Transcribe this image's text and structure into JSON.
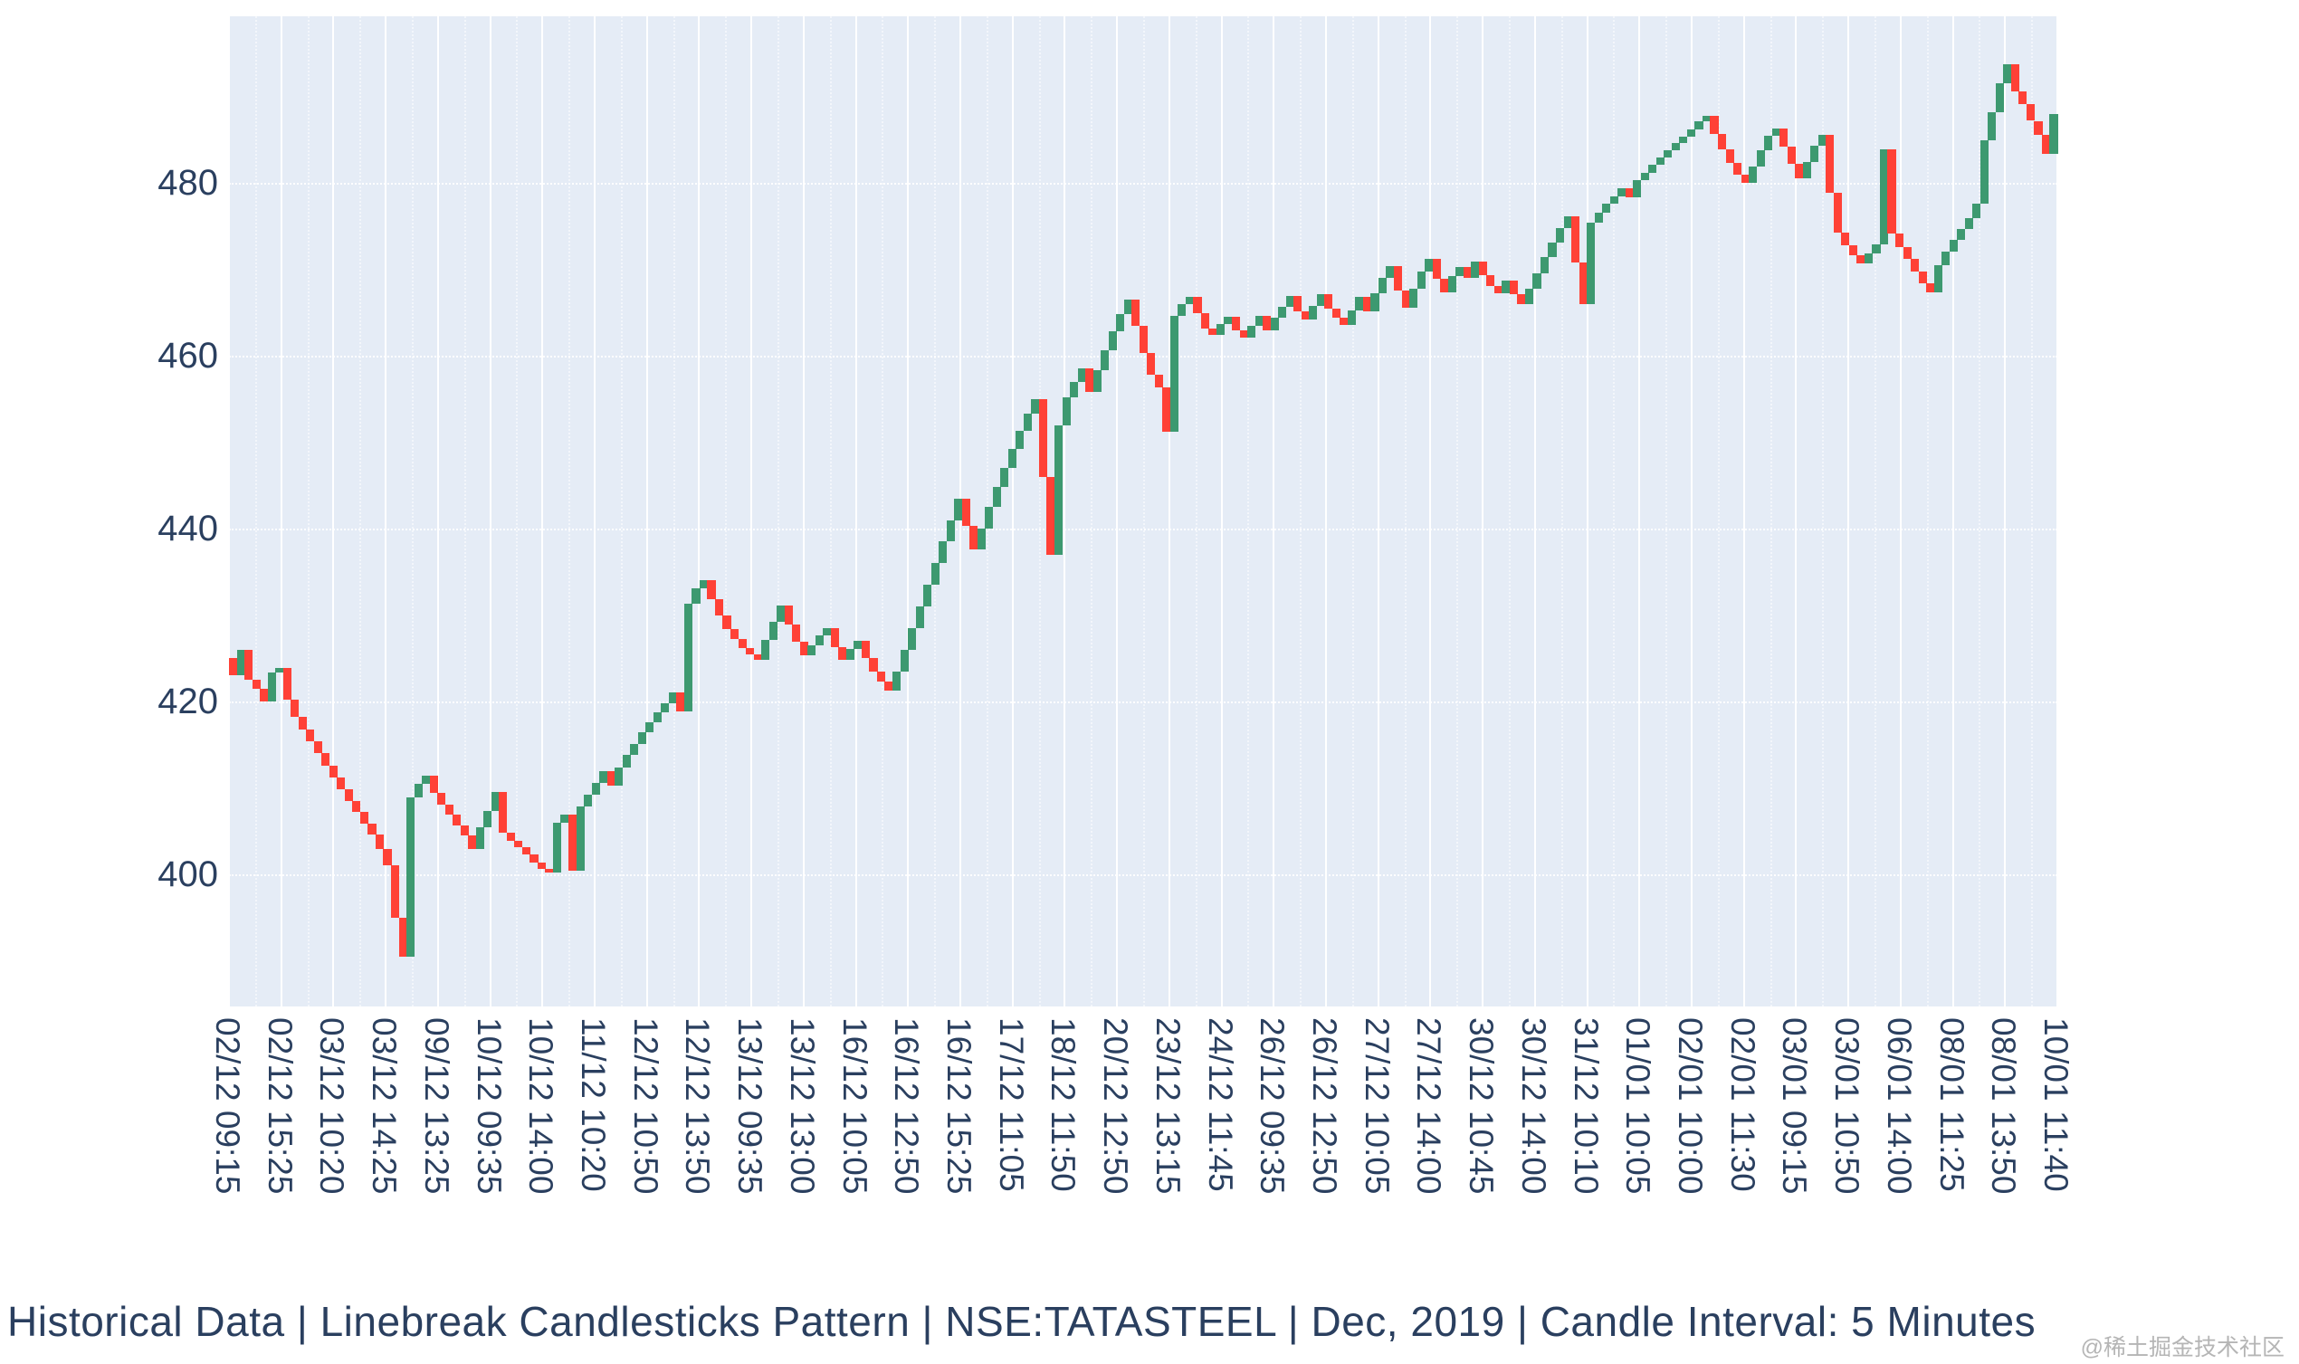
{
  "title": "Historical Data | Linebreak Candlesticks Pattern | NSE:TATASTEEL | Dec, 2019 | Candle Interval: 5 Minutes",
  "watermark": "@稀土掘金技术社区",
  "chart_data": {
    "type": "candlestick",
    "subtype": "linebreak",
    "symbol": "NSE:TATASTEEL",
    "period": "Dec, 2019",
    "candle_interval": "5 Minutes",
    "legend_position": "none",
    "grid": "on",
    "y_ticks": [
      400,
      420,
      440,
      460,
      480
    ],
    "y_range": [
      384.7,
      499.3
    ],
    "x_tick_labels": [
      "02/12 09:15",
      "02/12 15:25",
      "03/12 10:20",
      "03/12 14:25",
      "09/12 13:25",
      "10/12 09:35",
      "10/12 14:00",
      "11/12 10:20",
      "12/12 10:50",
      "12/12 13:50",
      "13/12 09:35",
      "13/12 13:00",
      "16/12 10:05",
      "16/12 12:50",
      "16/12 15:25",
      "17/12 11:05",
      "18/12 11:50",
      "20/12 12:50",
      "23/12 13:15",
      "24/12 11:45",
      "26/12 09:35",
      "26/12 12:50",
      "27/12 10:05",
      "27/12 14:00",
      "30/12 10:45",
      "30/12 14:00",
      "31/12 10:10",
      "01/01 10:05",
      "02/01 10:00",
      "02/01 11:30",
      "03/01 09:15",
      "03/01 10:50",
      "06/01 14:00",
      "08/01 11:25",
      "08/01 13:50",
      "10/01 11:40"
    ],
    "first_open": 425.0,
    "closes": [
      423.0,
      426.0,
      422.5,
      421.5,
      420.0,
      423.4,
      423.9,
      420.2,
      418.2,
      416.8,
      415.4,
      414.0,
      412.6,
      411.2,
      409.8,
      408.5,
      407.2,
      405.9,
      404.6,
      402.9,
      401.0,
      395.0,
      390.5,
      408.9,
      410.5,
      411.4,
      409.4,
      408.1,
      406.9,
      405.7,
      404.5,
      402.9,
      405.4,
      407.3,
      409.5,
      404.8,
      403.9,
      403.1,
      402.3,
      401.4,
      400.6,
      400.2,
      406.0,
      406.9,
      400.4,
      407.9,
      409.2,
      410.6,
      411.9,
      410.3,
      412.4,
      413.8,
      415.1,
      416.4,
      417.6,
      418.7,
      419.8,
      421.0,
      418.8,
      431.3,
      433.1,
      434.0,
      431.8,
      430.0,
      428.4,
      427.2,
      426.2,
      425.4,
      424.8,
      427.1,
      429.2,
      431.1,
      428.9,
      426.9,
      425.3,
      426.5,
      427.6,
      428.5,
      426.3,
      424.8,
      426.1,
      427.0,
      425.0,
      423.5,
      422.3,
      421.3,
      423.5,
      426.0,
      428.5,
      431.0,
      433.5,
      436.0,
      438.5,
      441.0,
      443.5,
      440.3,
      437.6,
      440.0,
      442.5,
      444.8,
      447.0,
      449.2,
      451.3,
      453.3,
      455.0,
      446.0,
      437.0,
      452.0,
      455.2,
      457.0,
      458.6,
      455.8,
      458.3,
      460.6,
      462.8,
      464.8,
      466.5,
      463.5,
      460.3,
      457.8,
      456.3,
      451.2,
      464.6,
      466.0,
      466.8,
      464.9,
      463.2,
      462.4,
      463.7,
      464.5,
      462.9,
      462.1,
      463.5,
      464.6,
      463.0,
      464.4,
      465.7,
      466.9,
      465.2,
      464.2,
      465.8,
      467.1,
      465.5,
      464.4,
      463.6,
      465.3,
      466.8,
      465.1,
      467.2,
      469.0,
      470.4,
      467.6,
      465.6,
      467.8,
      469.8,
      471.2,
      468.9,
      467.3,
      469.2,
      470.3,
      469.0,
      470.9,
      469.3,
      468.1,
      467.2,
      468.7,
      467.1,
      466.0,
      467.8,
      469.6,
      471.4,
      473.1,
      474.8,
      476.2,
      470.8,
      466.0,
      475.4,
      476.6,
      477.6,
      478.5,
      479.4,
      478.4,
      480.3,
      481.2,
      482.1,
      483.0,
      483.8,
      484.6,
      485.4,
      486.2,
      487.1,
      487.8,
      485.7,
      483.9,
      482.3,
      481.0,
      480.0,
      481.9,
      483.8,
      485.5,
      486.3,
      484.2,
      482.2,
      480.5,
      482.4,
      484.3,
      485.6,
      478.9,
      474.3,
      472.8,
      471.6,
      470.7,
      471.9,
      472.9,
      483.9,
      474.2,
      472.6,
      471.2,
      469.8,
      468.4,
      467.4,
      470.5,
      472.1,
      473.4,
      474.7,
      475.9,
      477.6,
      485.0,
      488.2,
      491.6,
      493.7,
      490.6,
      489.1,
      487.2,
      485.6,
      483.4,
      488.0
    ],
    "colors": {
      "up": "#3D9970",
      "down": "#FF4136",
      "plot_bg": "#E5ECF6",
      "gridline": "#FFFFFF",
      "tick_label": "#2a3f5f",
      "title": "#2a3f5f",
      "watermark": "#b5b5b5",
      "paper_bg": "#FFFFFF"
    }
  }
}
